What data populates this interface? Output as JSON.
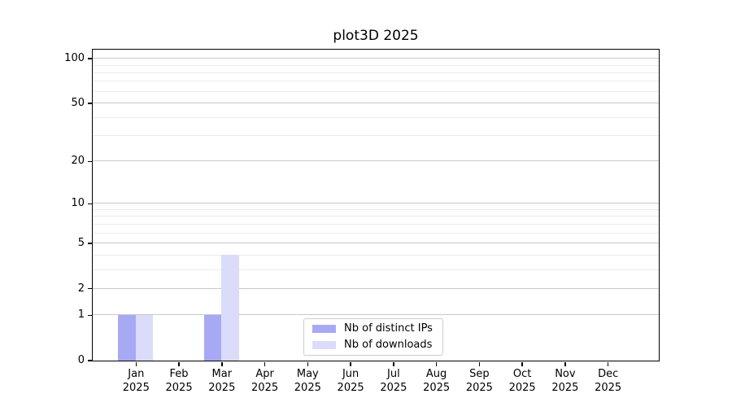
{
  "chart_data": {
    "type": "bar",
    "title": "plot3D 2025",
    "categories": [
      "Jan 2025",
      "Feb 2025",
      "Mar 2025",
      "Apr 2025",
      "May 2025",
      "Jun 2025",
      "Jul 2025",
      "Aug 2025",
      "Sep 2025",
      "Oct 2025",
      "Nov 2025",
      "Dec 2025"
    ],
    "series": [
      {
        "name": "Nb of distinct IPs",
        "color": "#a8a9f5",
        "values": [
          1,
          0,
          1,
          0,
          0,
          0,
          0,
          0,
          0,
          0,
          0,
          0
        ]
      },
      {
        "name": "Nb of downloads",
        "color": "#dbdcfa",
        "values": [
          1,
          0,
          4,
          0,
          0,
          0,
          0,
          0,
          0,
          0,
          0,
          0
        ]
      }
    ],
    "y_axis": {
      "scale": "log1p",
      "ticks": [
        0,
        1,
        2,
        5,
        10,
        20,
        50,
        100
      ],
      "minor_gridlines": [
        3,
        4,
        6,
        7,
        8,
        9,
        30,
        40,
        60,
        70,
        80,
        90
      ],
      "max": 115
    },
    "legend": {
      "position": "lower center"
    },
    "grid": true,
    "colors": {
      "major_grid": "#c9c9c9",
      "minor_grid": "#ebebeb",
      "axis": "#000000",
      "background": "#ffffff"
    }
  }
}
